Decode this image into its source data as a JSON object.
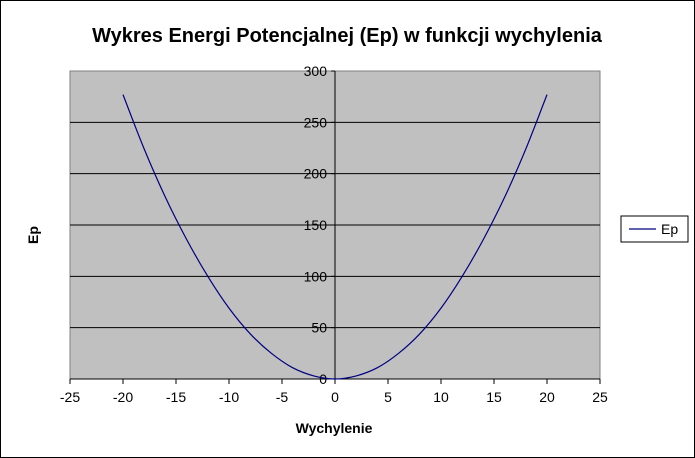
{
  "chart_data": {
    "type": "line",
    "title": "Wykres Energi Potencjalnej (Ep) w funkcji wychylenia",
    "xlabel": "Wychylenie",
    "ylabel": "Ep",
    "xlim": [
      -25,
      25
    ],
    "ylim": [
      0,
      300
    ],
    "x_ticks": [
      "-25",
      "-20",
      "-15",
      "-10",
      "-5",
      "0",
      "5",
      "10",
      "15",
      "20",
      "25"
    ],
    "y_ticks": [
      "0",
      "50",
      "100",
      "150",
      "200",
      "250",
      "300"
    ],
    "grid": "horizontal major gridlines",
    "legend_position": "right",
    "plot_background": "#c0c0c0",
    "series": [
      {
        "name": "Ep",
        "color": "#000080",
        "x": [
          -20,
          -18,
          -16,
          -14,
          -12,
          -10,
          -8,
          -6,
          -4,
          -2,
          0,
          2,
          4,
          6,
          8,
          10,
          12,
          14,
          16,
          18,
          20
        ],
        "y": [
          277,
          224,
          177,
          136,
          100,
          69,
          44,
          25,
          11,
          3,
          0,
          3,
          11,
          25,
          44,
          69,
          100,
          136,
          177,
          224,
          277
        ]
      }
    ]
  }
}
